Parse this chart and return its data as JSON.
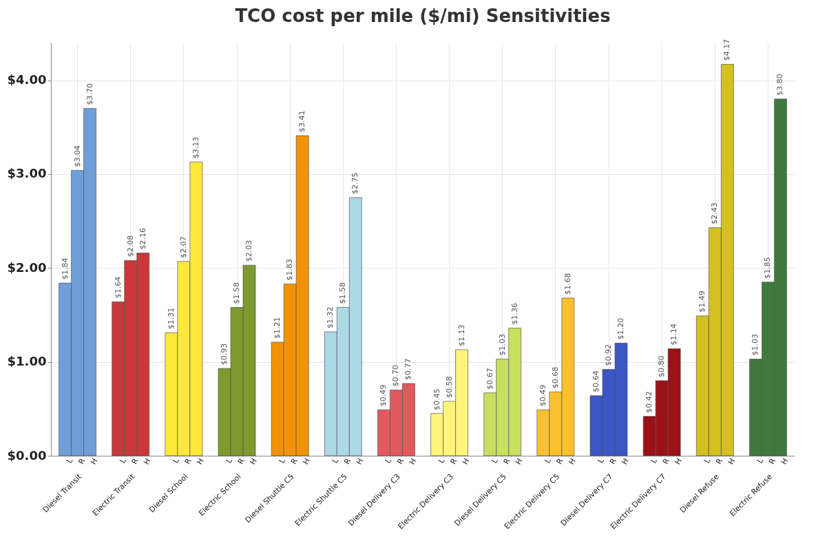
{
  "chart_data": {
    "type": "bar",
    "title": "TCO cost per mile ($/mi) Sensitivities",
    "categories": [
      "Diesel Transit",
      "Electric Transit",
      "Diesel School",
      "Electric School",
      "Diesel Shuttle C5",
      "Electric Shuttle C5",
      "Diesel Delivery C3",
      "Electric Delivery C3",
      "Diesel Delivery C5",
      "Electric Delivery C5",
      "Diesel Delivery C7",
      "Electric Delivery C7",
      "Diesel Refuse",
      "Electric Refuse"
    ],
    "series": [
      {
        "name": "L",
        "colors": [
          "#6f9fd8",
          "#c9373a",
          "#ffe83a",
          "#7f9a2e",
          "#f39200",
          "#add8e6",
          "#e05a5e",
          "#fff57a",
          "#c8e060",
          "#fbc02d",
          "#3a55c4",
          "#9b1116",
          "#d4c020",
          "#3f7a3c"
        ],
        "values": [
          1.84,
          1.64,
          1.31,
          0.93,
          1.21,
          1.32,
          0.49,
          0.45,
          0.67,
          0.49,
          0.64,
          0.42,
          1.49,
          1.03
        ],
        "value_labels": [
          "$1.84",
          "$1.64",
          "$1.31",
          "$0.93",
          "$1.21",
          "$1.32",
          "$0.49",
          "$0.45",
          "$0.67",
          "$0.49",
          "$0.64",
          "$0.42",
          "$1.49",
          "$1.03"
        ]
      },
      {
        "name": "R",
        "colors": [
          "#6f9fd8",
          "#c9373a",
          "#ffe83a",
          "#7f9a2e",
          "#f39200",
          "#add8e6",
          "#e05a5e",
          "#fff57a",
          "#c8e060",
          "#fbc02d",
          "#3a55c4",
          "#9b1116",
          "#d4c020",
          "#3f7a3c"
        ],
        "values": [
          3.04,
          2.08,
          2.07,
          1.58,
          1.83,
          1.58,
          0.7,
          0.58,
          1.03,
          0.68,
          0.92,
          0.8,
          2.43,
          1.85
        ],
        "value_labels": [
          "$3.04",
          "$2.08",
          "$2.07",
          "$1.58",
          "$1.83",
          "$1.58",
          "$0.70",
          "$0.58",
          "$1.03",
          "$0.68",
          "$0.92",
          "$0.80",
          "$2.43",
          "$1.85"
        ]
      },
      {
        "name": "H",
        "colors": [
          "#6f9fd8",
          "#c9373a",
          "#ffe83a",
          "#7f9a2e",
          "#f39200",
          "#add8e6",
          "#e05a5e",
          "#fff57a",
          "#c8e060",
          "#fbc02d",
          "#3a55c4",
          "#9b1116",
          "#d4c020",
          "#3f7a3c"
        ],
        "values": [
          3.7,
          2.16,
          3.13,
          2.03,
          3.41,
          2.75,
          0.77,
          1.13,
          1.36,
          1.68,
          1.2,
          1.14,
          4.17,
          3.8
        ],
        "value_labels": [
          "$3.70",
          "$2.16",
          "$3.13",
          "$2.03",
          "$3.41",
          "$2.75",
          "$0.77",
          "$1.13",
          "$1.36",
          "$1.68",
          "$1.20",
          "$1.14",
          "$4.17",
          "$3.80"
        ]
      }
    ],
    "ylim": [
      0,
      4.4
    ],
    "yticks": [
      {
        "value": 0,
        "label": "$0.00"
      },
      {
        "value": 1,
        "label": "$1.00"
      },
      {
        "value": 2,
        "label": "$2.00"
      },
      {
        "value": 3,
        "label": "$3.00"
      },
      {
        "value": 4,
        "label": "$4.00"
      }
    ],
    "grid": true
  }
}
